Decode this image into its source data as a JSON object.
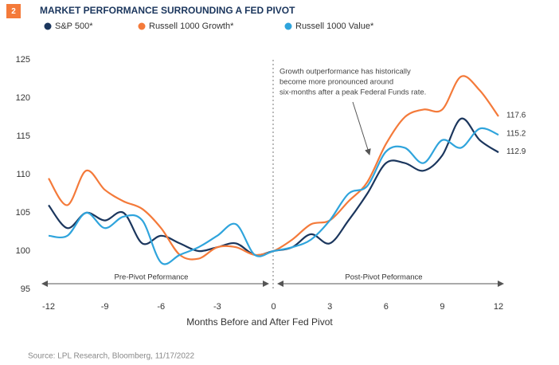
{
  "chart_data": {
    "type": "line",
    "figure_number": "2",
    "title": "MARKET PERFORMANCE SURROUNDING A FED PIVOT",
    "x_label": "Months Before and After Fed Pivot",
    "annotation": [
      "Growth outperformance has historically",
      "become more pronounced around",
      "six-months after a peak Federal Funds rate."
    ],
    "regions": [
      "Pre-Pivot Peformance",
      "Post-Pivot Peformance"
    ],
    "source": "Source: LPL Research, Bloomberg, 11/17/2022",
    "x": [
      -12,
      -11,
      -10,
      -9,
      -8,
      -7,
      -6,
      -5,
      -4,
      -3,
      -2,
      -1,
      0,
      1,
      2,
      3,
      4,
      5,
      6,
      7,
      8,
      9,
      10,
      11,
      12
    ],
    "series": [
      {
        "name": "S&P 500*",
        "color": "#1b365d",
        "values": [
          106,
          103,
          105,
          104,
          105,
          101,
          102,
          101,
          100,
          100.5,
          101,
          99.5,
          100,
          100.5,
          102.2,
          101,
          104,
          107.5,
          111.5,
          111.5,
          110.5,
          112.5,
          117.3,
          114.5,
          112.9
        ]
      },
      {
        "name": "Russell 1000 Growth*",
        "color": "#f47a3a",
        "values": [
          109.5,
          106,
          110.5,
          108,
          106.5,
          105.5,
          103,
          99.5,
          99,
          100.5,
          100.5,
          99.5,
          100,
          101.5,
          103.5,
          104,
          106.5,
          109,
          114,
          117.5,
          118.5,
          118.5,
          122.8,
          121,
          117.6
        ]
      },
      {
        "name": "Russell 1000 Value*",
        "color": "#2fa4dc",
        "values": [
          102,
          102,
          105,
          103,
          104.5,
          104,
          98.5,
          99.5,
          100.5,
          102,
          103.5,
          99.5,
          100,
          100.5,
          101.5,
          104,
          107.5,
          108.5,
          113,
          113.5,
          111.5,
          114.5,
          113.5,
          116,
          115.2
        ]
      }
    ],
    "xlim": [
      -12,
      12
    ],
    "xticks": [
      -12,
      -9,
      -6,
      -3,
      0,
      3,
      6,
      9,
      12
    ],
    "ylim": [
      95,
      125
    ],
    "yticks": [
      95,
      100,
      105,
      110,
      115,
      120,
      125
    ],
    "legend": "top"
  }
}
